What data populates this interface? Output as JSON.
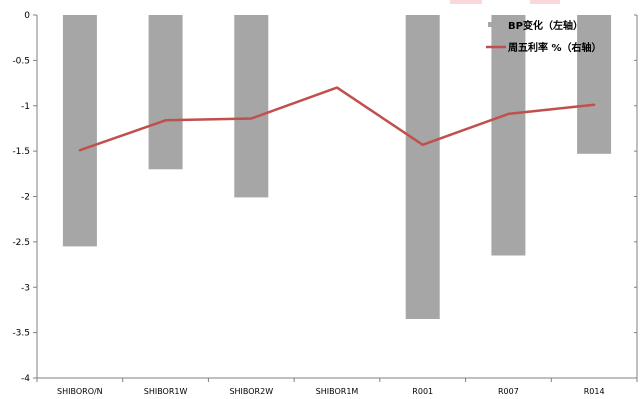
{
  "chart_data": {
    "type": "bar",
    "categories": [
      "SHIBORO/N",
      "SHIBOR1W",
      "SHIBOR2W",
      "SHIBOR1M",
      "R001",
      "R007",
      "R014"
    ],
    "series": [
      {
        "name": "BP变化（左轴）",
        "type": "bar",
        "axis": "left",
        "color": "#a6a6a6",
        "values": [
          -2.55,
          -1.7,
          -2.01,
          0,
          -3.35,
          -2.65,
          -1.53
        ]
      },
      {
        "name": "周五利率 %（右轴）",
        "type": "line",
        "axis": "right",
        "color": "#c0504d",
        "values": [
          -1.49,
          -1.16,
          -1.14,
          -0.8,
          -1.43,
          -1.09,
          -0.99
        ]
      }
    ],
    "y_left": {
      "ylim": [
        -4,
        0
      ],
      "ticks": [
        0,
        -0.5,
        -1,
        -1.5,
        -2,
        -2.5,
        -3,
        -3.5,
        -4
      ],
      "tick_labels": [
        "0",
        "-0.5",
        "-1",
        "-1.5",
        "-2",
        "-2.5",
        "-3",
        "-3.5",
        "-4"
      ]
    },
    "y_right": {
      "ylim": [
        -4,
        0
      ],
      "ticks": [
        0,
        -0.5,
        -1,
        -1.5,
        -2,
        -2.5,
        -3,
        -3.5,
        -4
      ]
    },
    "grid": false,
    "legend_position": "top-right"
  }
}
